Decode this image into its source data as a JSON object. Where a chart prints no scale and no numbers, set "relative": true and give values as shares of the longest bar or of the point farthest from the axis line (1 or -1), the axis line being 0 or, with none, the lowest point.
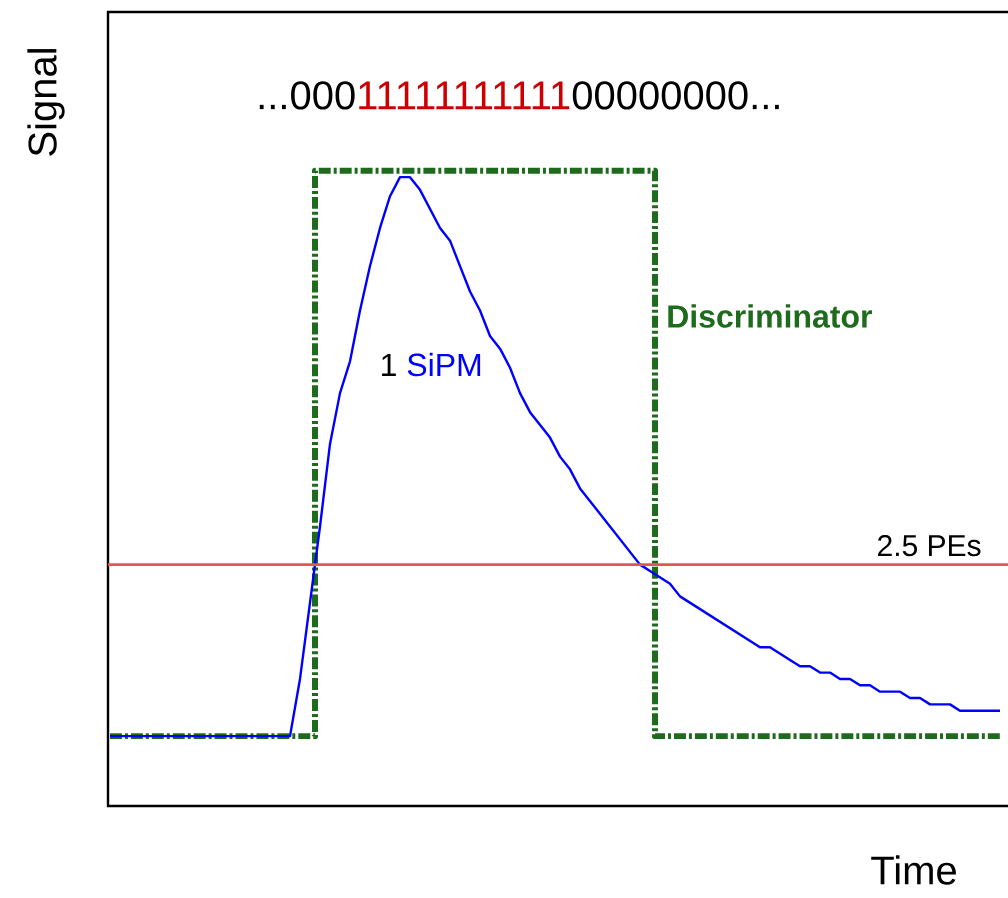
{
  "chart_data": {
    "type": "line",
    "relative": true,
    "xlabel": "Time",
    "ylabel": "Signal",
    "annotations": [
      "...000",
      "11111111111",
      "00000000...",
      "1"
    ],
    "categories": [
      null,
      null,
      null,
      null,
      null,
      null,
      null,
      null,
      null,
      null,
      null,
      null,
      null,
      null,
      null,
      null,
      null,
      null,
      null,
      null,
      null,
      null,
      null,
      null,
      null,
      null,
      null,
      null,
      null,
      null,
      null,
      null,
      null,
      null,
      null,
      null,
      null,
      null,
      null,
      null,
      null,
      null,
      null,
      null,
      null,
      null,
      null,
      null,
      null,
      null,
      null,
      null,
      null,
      null,
      null,
      null,
      null,
      null,
      null,
      null,
      null,
      null,
      null,
      null,
      null,
      null,
      null,
      null,
      null,
      null,
      null,
      null,
      null,
      null,
      null,
      null,
      null,
      null,
      null,
      null,
      null,
      null,
      null,
      null,
      null,
      null,
      null,
      null,
      null,
      null
    ],
    "series": [
      {
        "name": "SiPM",
        "type": "line",
        "color": "#0000ff",
        "line_style": "solid",
        "values": [
          0.11,
          0.11,
          0.11,
          0.11,
          0.11,
          0.11,
          0.11,
          0.11,
          0.11,
          0.11,
          0.11,
          0.11,
          0.11,
          0.11,
          0.11,
          0.11,
          0.11,
          0.11,
          0.11,
          0.2,
          0.32,
          0.44,
          0.57,
          0.65,
          0.7,
          0.78,
          0.85,
          0.91,
          0.96,
          0.99,
          0.99,
          0.97,
          0.94,
          0.91,
          0.89,
          0.85,
          0.81,
          0.78,
          0.74,
          0.72,
          0.69,
          0.65,
          0.62,
          0.6,
          0.58,
          0.55,
          0.53,
          0.5,
          0.48,
          0.46,
          0.44,
          0.42,
          0.4,
          0.38,
          0.37,
          0.36,
          0.35,
          0.33,
          0.32,
          0.31,
          0.3,
          0.29,
          0.28,
          0.27,
          0.26,
          0.25,
          0.25,
          0.24,
          0.23,
          0.22,
          0.22,
          0.21,
          0.21,
          0.2,
          0.2,
          0.19,
          0.19,
          0.18,
          0.18,
          0.18,
          0.17,
          0.17,
          0.16,
          0.16,
          0.16,
          0.15,
          0.15,
          0.15,
          0.15,
          0.15
        ]
      },
      {
        "name": "Discriminator",
        "type": "step",
        "color": "#1e6b1e",
        "line_style": "dashed",
        "values": [
          0.11,
          0.11,
          0.11,
          0.11,
          0.11,
          0.11,
          0.11,
          0.11,
          0.11,
          0.11,
          0.11,
          0.11,
          0.11,
          0.11,
          0.11,
          0.11,
          0.11,
          0.11,
          0.11,
          0.11,
          0.11,
          1.0,
          1.0,
          1.0,
          1.0,
          1.0,
          1.0,
          1.0,
          1.0,
          1.0,
          1.0,
          1.0,
          1.0,
          1.0,
          1.0,
          1.0,
          1.0,
          1.0,
          1.0,
          1.0,
          1.0,
          1.0,
          1.0,
          1.0,
          1.0,
          1.0,
          1.0,
          1.0,
          1.0,
          1.0,
          1.0,
          1.0,
          1.0,
          1.0,
          1.0,
          0.11,
          0.11,
          0.11,
          0.11,
          0.11,
          0.11,
          0.11,
          0.11,
          0.11,
          0.11,
          0.11,
          0.11,
          0.11,
          0.11,
          0.11,
          0.11,
          0.11,
          0.11,
          0.11,
          0.11,
          0.11,
          0.11,
          0.11,
          0.11,
          0.11,
          0.11,
          0.11,
          0.11,
          0.11,
          0.11,
          0.11,
          0.11,
          0.11,
          0.11,
          0.11
        ]
      }
    ],
    "ref_lines": [
      {
        "axis": "y",
        "value": 0.38,
        "label": "2.5 PEs",
        "color": "#dc5a4e"
      }
    ]
  }
}
